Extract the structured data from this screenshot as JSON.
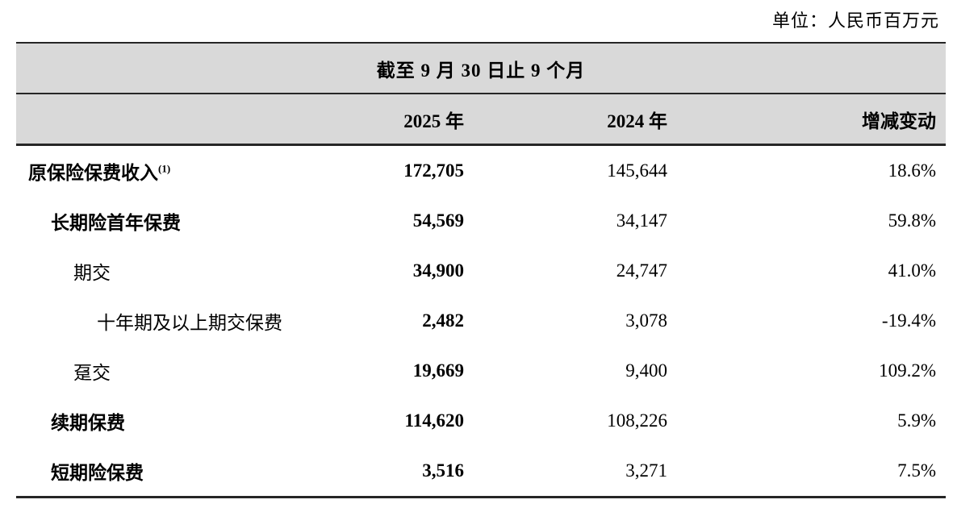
{
  "unit_label": "单位：人民币百万元",
  "table": {
    "title": "截至 9 月 30 日止 9 个月",
    "columns": [
      "2025 年",
      "2024 年",
      "增减变动"
    ],
    "rows": [
      {
        "label": "原保险保费收入",
        "footnote": "(1)",
        "v2025": "172,705",
        "v2024": "145,644",
        "change": "18.6%"
      },
      {
        "label": "长期险首年保费",
        "v2025": "54,569",
        "v2024": "34,147",
        "change": "59.8%"
      },
      {
        "label": "期交",
        "v2025": "34,900",
        "v2024": "24,747",
        "change": "41.0%"
      },
      {
        "label": "十年期及以上期交保费",
        "v2025": "2,482",
        "v2024": "3,078",
        "change": "-19.4%"
      },
      {
        "label": "趸交",
        "v2025": "19,669",
        "v2024": "9,400",
        "change": "109.2%"
      },
      {
        "label": "续期保费",
        "v2025": "114,620",
        "v2024": "108,226",
        "change": "5.9%"
      },
      {
        "label": "短期险保费",
        "v2025": "3,516",
        "v2024": "3,271",
        "change": "7.5%"
      }
    ]
  },
  "colors": {
    "band_bg": "#d9d9d9",
    "border": "#262626",
    "text": "#000000"
  }
}
